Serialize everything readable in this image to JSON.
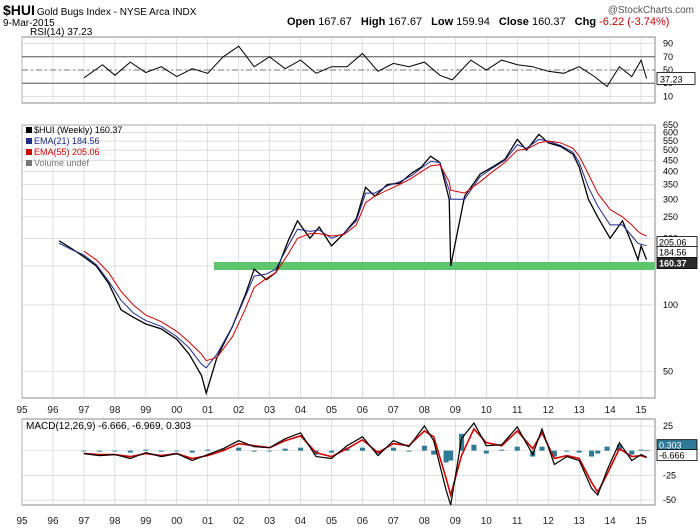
{
  "header": {
    "symbol": "$HUI",
    "name": "Gold Bugs Index - NYSE Arca INDX",
    "date": "9-Mar-2015",
    "open_label": "Open",
    "open": "167.67",
    "high_label": "High",
    "high": "167.67",
    "low_label": "Low",
    "low": "159.94",
    "close_label": "Close",
    "close": "160.37",
    "chg_label": "Chg",
    "chg": "-6.22 (-3.74%)",
    "brand": "@StockCharts.com"
  },
  "colors": {
    "price": "#000000",
    "ema21": "#1f2a8f",
    "ema55": "#d40000",
    "support_band": "#5cc56e",
    "histogram": "#2f7a96",
    "macd_line": "#000000",
    "signal_line": "#d40000",
    "grid": "#cccccc",
    "label_box": "#2a2a2a"
  },
  "x_axis_labels": [
    "95",
    "96",
    "97",
    "98",
    "99",
    "00",
    "01",
    "02",
    "03",
    "04",
    "05",
    "06",
    "07",
    "08",
    "09",
    "10",
    "11",
    "12",
    "13",
    "14",
    "15"
  ],
  "chart_data": [
    {
      "type": "line",
      "panel": "rsi",
      "title": "RSI(14) 37.23",
      "y_ticks": [
        90,
        70,
        50,
        30,
        10
      ],
      "ylim": [
        0,
        100
      ],
      "reference_lines": [
        70,
        30
      ],
      "last_value_label": "37.23",
      "x": [
        1997.0,
        1997.6,
        1998.0,
        1998.5,
        1999.0,
        1999.5,
        2000.0,
        2000.5,
        2001.0,
        2001.5,
        2002.0,
        2002.5,
        2003.0,
        2003.5,
        2004.0,
        2004.5,
        2005.0,
        2005.5,
        2006.0,
        2006.5,
        2007.0,
        2007.5,
        2008.0,
        2008.5,
        2008.9,
        2009.5,
        2010.0,
        2010.5,
        2011.0,
        2011.5,
        2012.0,
        2012.5,
        2013.0,
        2013.5,
        2013.9,
        2014.3,
        2014.7,
        2015.0,
        2015.18
      ],
      "series": [
        {
          "values": [
            38,
            58,
            42,
            62,
            46,
            55,
            40,
            52,
            45,
            70,
            86,
            55,
            70,
            52,
            65,
            45,
            55,
            55,
            75,
            48,
            60,
            55,
            62,
            42,
            35,
            65,
            50,
            65,
            58,
            55,
            48,
            45,
            55,
            40,
            25,
            55,
            40,
            65,
            37
          ]
        }
      ]
    },
    {
      "type": "line",
      "panel": "price",
      "scale": "log",
      "ylim": [
        38,
        650
      ],
      "y_ticks": [
        650,
        600,
        550,
        500,
        450,
        400,
        350,
        300,
        250,
        200,
        150,
        100,
        50
      ],
      "support_level": 150,
      "legend": [
        {
          "text": "$HUI (Weekly) 160.37",
          "color": "#000000"
        },
        {
          "text": "EMA(21) 184.56",
          "color": "#1f2a8f"
        },
        {
          "text": "EMA(55) 205.06",
          "color": "#d40000"
        },
        {
          "text": "Volume undef",
          "color": "#777777"
        }
      ],
      "last_labels": [
        {
          "text": "205.06",
          "value": 205.06,
          "style": "outline"
        },
        {
          "text": "184.56",
          "value": 184.56,
          "style": "outline"
        },
        {
          "text": "160.37",
          "value": 160.37,
          "style": "filled"
        }
      ],
      "x": [
        1996.2,
        1996.6,
        1997.0,
        1997.4,
        1997.8,
        1998.2,
        1998.6,
        1999.0,
        1999.5,
        2000.0,
        2000.4,
        2000.8,
        2000.95,
        2001.3,
        2001.8,
        2002.2,
        2002.5,
        2002.9,
        2003.2,
        2003.6,
        2003.9,
        2004.3,
        2004.6,
        2005.0,
        2005.4,
        2005.8,
        2006.1,
        2006.4,
        2006.8,
        2007.2,
        2007.6,
        2007.9,
        2008.2,
        2008.5,
        2008.8,
        2008.85,
        2009.3,
        2009.8,
        2010.2,
        2010.6,
        2011.0,
        2011.3,
        2011.7,
        2012.0,
        2012.4,
        2012.8,
        2013.0,
        2013.3,
        2013.6,
        2014.0,
        2014.4,
        2014.7,
        2014.9,
        2015.0,
        2015.18
      ],
      "series": [
        {
          "name": "$HUI (Weekly)",
          "values": [
            195,
            180,
            165,
            150,
            125,
            95,
            88,
            82,
            78,
            70,
            60,
            48,
            40,
            58,
            80,
            110,
            145,
            130,
            140,
            195,
            240,
            200,
            225,
            185,
            210,
            245,
            340,
            310,
            350,
            355,
            395,
            420,
            470,
            440,
            300,
            150,
            310,
            390,
            420,
            455,
            560,
            500,
            590,
            540,
            520,
            480,
            420,
            300,
            250,
            200,
            240,
            190,
            160,
            185,
            160
          ]
        },
        {
          "name": "EMA(21)",
          "values": [
            190,
            178,
            168,
            152,
            128,
            105,
            92,
            85,
            80,
            72,
            64,
            54,
            52,
            60,
            80,
            108,
            135,
            138,
            145,
            185,
            220,
            215,
            218,
            200,
            210,
            240,
            320,
            320,
            345,
            360,
            385,
            415,
            445,
            440,
            330,
            300,
            300,
            380,
            415,
            450,
            530,
            510,
            560,
            550,
            525,
            490,
            440,
            340,
            280,
            230,
            230,
            205,
            190,
            188,
            185
          ]
        },
        {
          "name": "EMA(55)",
          "values": [
            null,
            null,
            175,
            160,
            140,
            115,
            100,
            90,
            84,
            76,
            68,
            60,
            56,
            58,
            72,
            95,
            120,
            132,
            140,
            170,
            200,
            210,
            210,
            205,
            208,
            230,
            290,
            310,
            330,
            350,
            375,
            400,
            425,
            430,
            360,
            330,
            320,
            360,
            400,
            440,
            500,
            505,
            540,
            550,
            540,
            510,
            470,
            390,
            320,
            270,
            250,
            230,
            215,
            210,
            205
          ]
        }
      ]
    },
    {
      "type": "line",
      "panel": "macd",
      "title": "MACD(12,26,9) -6.666, -6.969, 0.303",
      "y_ticks": [
        25,
        0,
        -25,
        -50
      ],
      "ylim": [
        -55,
        32
      ],
      "last_labels": [
        {
          "text": "0.303",
          "value": 0.303,
          "style": "filled"
        },
        {
          "text": "-6.666",
          "value": -6.666,
          "style": "outline"
        }
      ],
      "x": [
        1997.0,
        1997.5,
        1998.0,
        1998.5,
        1999.0,
        1999.5,
        2000.0,
        2000.5,
        2001.0,
        2001.5,
        2002.0,
        2002.5,
        2003.0,
        2003.5,
        2004.0,
        2004.5,
        2005.0,
        2005.5,
        2006.0,
        2006.5,
        2007.0,
        2007.5,
        2008.0,
        2008.3,
        2008.7,
        2008.85,
        2009.2,
        2009.6,
        2010.0,
        2010.5,
        2011.0,
        2011.5,
        2011.8,
        2012.2,
        2012.6,
        2013.0,
        2013.4,
        2013.6,
        2013.9,
        2014.3,
        2014.7,
        2015.0,
        2015.18
      ],
      "series": [
        {
          "name": "MACD",
          "values": [
            -3,
            -5,
            -4,
            -8,
            -2,
            -6,
            -3,
            -10,
            -4,
            2,
            10,
            4,
            3,
            12,
            18,
            -6,
            -8,
            5,
            14,
            -5,
            10,
            4,
            25,
            10,
            -40,
            -55,
            12,
            28,
            5,
            6,
            24,
            -4,
            22,
            -14,
            -6,
            -10,
            -38,
            -45,
            -20,
            8,
            -10,
            -4,
            -6.666
          ]
        },
        {
          "name": "Signal",
          "values": [
            -3,
            -4,
            -4,
            -6,
            -3,
            -5,
            -3,
            -8,
            -5,
            0,
            7,
            5,
            3,
            10,
            15,
            -2,
            -6,
            2,
            11,
            -2,
            7,
            5,
            20,
            14,
            -28,
            -45,
            -5,
            22,
            8,
            5,
            20,
            2,
            18,
            -8,
            -5,
            -8,
            -32,
            -42,
            -24,
            2,
            -6,
            -5,
            -6.969
          ]
        },
        {
          "name": "Histogram",
          "values": [
            0,
            -1,
            0,
            -2,
            1,
            -1,
            0,
            -2,
            1,
            2,
            3,
            -1,
            0,
            2,
            3,
            -4,
            -2,
            3,
            3,
            -3,
            3,
            -1,
            5,
            -4,
            -12,
            -10,
            17,
            6,
            -3,
            1,
            4,
            -6,
            4,
            -6,
            -1,
            -2,
            -6,
            -3,
            4,
            6,
            -4,
            1,
            0.303
          ]
        }
      ]
    }
  ]
}
